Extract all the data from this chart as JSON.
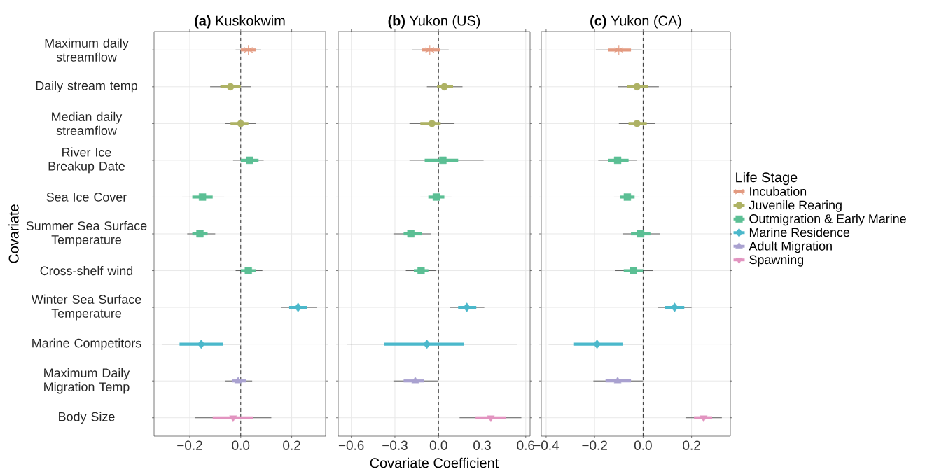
{
  "chart_data": [
    {
      "type": "box",
      "orientation": "horizontal",
      "title": "**(a)** Kuskokwim",
      "ylabel": "Covariate",
      "categories": [
        "Maximum daily streamflow",
        "Daily stream temp",
        "Median daily streamflow",
        "River Ice Breakup Date",
        "Sea Ice Cover",
        "Summer Sea Surface Temperature",
        "Cross-shelf wind",
        "Winter Sea Surface Temperature",
        "Marine Competitors",
        "Maximum Daily Migration Temp",
        "Body Size"
      ],
      "xlim": [
        -0.34,
        0.333
      ],
      "xticks": [
        {
          "value": -0.2,
          "label": "−0.2"
        },
        {
          "value": 0,
          "label": "0.0"
        },
        {
          "value": 0.2,
          "label": "0.2"
        }
      ],
      "grid": true,
      "ref_lines": [
        {
          "axis": "x",
          "value": 0,
          "line_style": "dashed",
          "color": "#000000"
        }
      ],
      "series": [
        {
          "color": "#e39a80",
          "marker": "star",
          "boxes": [
            {
              "low": -0.02,
              "q1": 0.0,
              "median": 0.03,
              "q3": 0.06,
              "high": 0.08
            },
            null,
            null,
            null,
            null,
            null,
            null,
            null,
            null,
            null,
            null
          ]
        },
        {
          "color": "#aeb264",
          "marker": "circle",
          "boxes": [
            null,
            {
              "low": -0.12,
              "q1": -0.08,
              "median": -0.04,
              "q3": 0.0,
              "high": 0.04
            },
            {
              "low": -0.06,
              "q1": -0.04,
              "median": 0.0,
              "q3": 0.03,
              "high": 0.06
            },
            null,
            null,
            null,
            null,
            null,
            null,
            null,
            null
          ]
        },
        {
          "color": "#5bbf94",
          "marker": "square",
          "boxes": [
            null,
            null,
            null,
            {
              "low": -0.03,
              "q1": 0.0,
              "median": 0.035,
              "q3": 0.07,
              "high": 0.09
            },
            {
              "low": -0.23,
              "q1": -0.19,
              "median": -0.15,
              "q3": -0.11,
              "high": -0.065
            },
            {
              "low": -0.21,
              "q1": -0.19,
              "median": -0.16,
              "q3": -0.13,
              "high": -0.1
            },
            {
              "low": -0.02,
              "q1": 0.0,
              "median": 0.03,
              "q3": 0.06,
              "high": 0.085
            },
            null,
            null,
            null,
            null
          ]
        },
        {
          "color": "#4bb8cb",
          "marker": "diamond",
          "boxes": [
            null,
            null,
            null,
            null,
            null,
            null,
            null,
            {
              "low": 0.16,
              "q1": 0.19,
              "median": 0.225,
              "q3": 0.26,
              "high": 0.3
            },
            {
              "low": -0.31,
              "q1": -0.24,
              "median": -0.155,
              "q3": -0.07,
              "high": 0.005
            },
            null,
            null
          ]
        },
        {
          "color": "#a9a1d0",
          "marker": "triangle",
          "boxes": [
            null,
            null,
            null,
            null,
            null,
            null,
            null,
            null,
            null,
            {
              "low": -0.06,
              "q1": -0.035,
              "median": -0.01,
              "q3": 0.02,
              "high": 0.045
            },
            null
          ]
        },
        {
          "color": "#e294c0",
          "marker": "triangle_down",
          "boxes": [
            null,
            null,
            null,
            null,
            null,
            null,
            null,
            null,
            null,
            null,
            {
              "low": -0.18,
              "q1": -0.11,
              "median": -0.03,
              "q3": 0.05,
              "high": 0.12
            }
          ]
        }
      ]
    },
    {
      "type": "box",
      "orientation": "horizontal",
      "title": "**(b)** Yukon (US)",
      "xlabel": "Covariate Coefficient",
      "tick_labels": "x",
      "categories": [
        null,
        null,
        null,
        null,
        null,
        null,
        null,
        null,
        null,
        null,
        null
      ],
      "xlim": [
        -0.69,
        0.63
      ],
      "xticks": [
        {
          "value": -0.6,
          "label": "−0.6"
        },
        {
          "value": -0.3,
          "label": "−0.3"
        },
        {
          "value": 0,
          "label": "0.0"
        },
        {
          "value": 0.3,
          "label": "0.3"
        },
        {
          "value": 0.6,
          "label": "0.6"
        }
      ],
      "grid": true,
      "ref_lines": [
        {
          "axis": "x",
          "value": 0,
          "line_style": "dashed",
          "color": "#000000"
        }
      ],
      "series": [
        {
          "color": "#e39a80",
          "marker": "star",
          "boxes": [
            {
              "low": -0.18,
              "q1": -0.115,
              "median": -0.06,
              "q3": 0.01,
              "high": 0.07
            },
            null,
            null,
            null,
            null,
            null,
            null,
            null,
            null,
            null,
            null
          ]
        },
        {
          "color": "#aeb264",
          "marker": "circle",
          "boxes": [
            null,
            {
              "low": -0.08,
              "q1": -0.01,
              "median": 0.04,
              "q3": 0.1,
              "high": 0.165
            },
            {
              "low": -0.2,
              "q1": -0.125,
              "median": -0.045,
              "q3": 0.015,
              "high": 0.11
            },
            null,
            null,
            null,
            null,
            null,
            null,
            null,
            null
          ]
        },
        {
          "color": "#5bbf94",
          "marker": "square",
          "boxes": [
            null,
            null,
            null,
            {
              "low": -0.2,
              "q1": -0.095,
              "median": 0.03,
              "q3": 0.135,
              "high": 0.31
            },
            {
              "low": -0.125,
              "q1": -0.07,
              "median": -0.015,
              "q3": 0.04,
              "high": 0.09
            },
            {
              "low": -0.31,
              "q1": -0.24,
              "median": -0.19,
              "q3": -0.115,
              "high": -0.05
            },
            {
              "low": -0.225,
              "q1": -0.17,
              "median": -0.12,
              "q3": -0.07,
              "high": -0.015
            },
            null,
            null,
            null,
            null
          ]
        },
        {
          "color": "#4bb8cb",
          "marker": "diamond",
          "boxes": [
            null,
            null,
            null,
            null,
            null,
            null,
            null,
            {
              "low": 0.08,
              "q1": 0.135,
              "median": 0.195,
              "q3": 0.26,
              "high": 0.315
            },
            {
              "low": -0.63,
              "q1": -0.375,
              "median": -0.08,
              "q3": 0.175,
              "high": 0.54
            },
            null,
            null
          ]
        },
        {
          "color": "#a9a1d0",
          "marker": "triangle",
          "boxes": [
            null,
            null,
            null,
            null,
            null,
            null,
            null,
            null,
            null,
            {
              "low": -0.31,
              "q1": -0.24,
              "median": -0.16,
              "q3": -0.1,
              "high": -0.005
            },
            null
          ]
        },
        {
          "color": "#e294c0",
          "marker": "triangle_down",
          "boxes": [
            null,
            null,
            null,
            null,
            null,
            null,
            null,
            null,
            null,
            null,
            {
              "low": 0.145,
              "q1": 0.255,
              "median": 0.36,
              "q3": 0.465,
              "high": 0.57
            }
          ]
        }
      ]
    },
    {
      "type": "box",
      "orientation": "horizontal",
      "title": "**(c)** Yukon (CA)",
      "tick_labels": "x",
      "legend": "right",
      "legend_title": "Life Stage",
      "categories": [
        null,
        null,
        null,
        null,
        null,
        null,
        null,
        null,
        null,
        null,
        null
      ],
      "xlim": [
        -0.42,
        0.36
      ],
      "xticks": [
        {
          "value": -0.4,
          "label": "−0.4"
        },
        {
          "value": -0.2,
          "label": "−0.2"
        },
        {
          "value": 0,
          "label": "0.0"
        },
        {
          "value": 0.2,
          "label": "0.2"
        }
      ],
      "grid": true,
      "ref_lines": [
        {
          "axis": "x",
          "value": 0,
          "line_style": "dashed",
          "color": "#000000"
        }
      ],
      "series": [
        {
          "name": "Incubation",
          "color": "#e39a80",
          "marker": "star",
          "boxes": [
            {
              "low": -0.195,
              "q1": -0.145,
              "median": -0.1,
              "q3": -0.05,
              "high": -0.005
            },
            null,
            null,
            null,
            null,
            null,
            null,
            null,
            null,
            null,
            null
          ]
        },
        {
          "name": "Juvenile Rearing",
          "color": "#aeb264",
          "marker": "circle",
          "boxes": [
            null,
            {
              "low": -0.105,
              "q1": -0.065,
              "median": -0.025,
              "q3": 0.02,
              "high": 0.065
            },
            {
              "low": -0.1,
              "q1": -0.06,
              "median": -0.025,
              "q3": 0.015,
              "high": 0.05
            },
            null,
            null,
            null,
            null,
            null,
            null,
            null,
            null
          ]
        },
        {
          "name": "Outmigration & Early Marine",
          "color": "#5bbf94",
          "marker": "square",
          "boxes": [
            null,
            null,
            null,
            {
              "low": -0.185,
              "q1": -0.145,
              "median": -0.105,
              "q3": -0.06,
              "high": -0.025
            },
            {
              "low": -0.12,
              "q1": -0.095,
              "median": -0.065,
              "q3": -0.035,
              "high": -0.015
            },
            {
              "low": -0.085,
              "q1": -0.05,
              "median": -0.01,
              "q3": 0.03,
              "high": 0.07
            },
            {
              "low": -0.115,
              "q1": -0.08,
              "median": -0.04,
              "q3": 0.0,
              "high": 0.04
            },
            null,
            null,
            null,
            null
          ]
        },
        {
          "name": "Marine Residence",
          "color": "#4bb8cb",
          "marker": "diamond",
          "boxes": [
            null,
            null,
            null,
            null,
            null,
            null,
            null,
            {
              "low": 0.06,
              "q1": 0.09,
              "median": 0.13,
              "q3": 0.17,
              "high": 0.2
            },
            {
              "low": -0.39,
              "q1": -0.285,
              "median": -0.19,
              "q3": -0.085,
              "high": 0.005
            },
            null,
            null
          ]
        },
        {
          "name": "Adult Migration",
          "color": "#a9a1d0",
          "marker": "triangle",
          "boxes": [
            null,
            null,
            null,
            null,
            null,
            null,
            null,
            null,
            null,
            {
              "low": -0.205,
              "q1": -0.155,
              "median": -0.105,
              "q3": -0.05,
              "high": 0.0
            },
            null
          ]
        },
        {
          "name": "Spawning",
          "color": "#e294c0",
          "marker": "triangle_down",
          "boxes": [
            null,
            null,
            null,
            null,
            null,
            null,
            null,
            null,
            null,
            null,
            {
              "low": 0.175,
              "q1": 0.21,
              "median": 0.25,
              "q3": 0.285,
              "high": 0.325
            }
          ]
        }
      ]
    }
  ]
}
